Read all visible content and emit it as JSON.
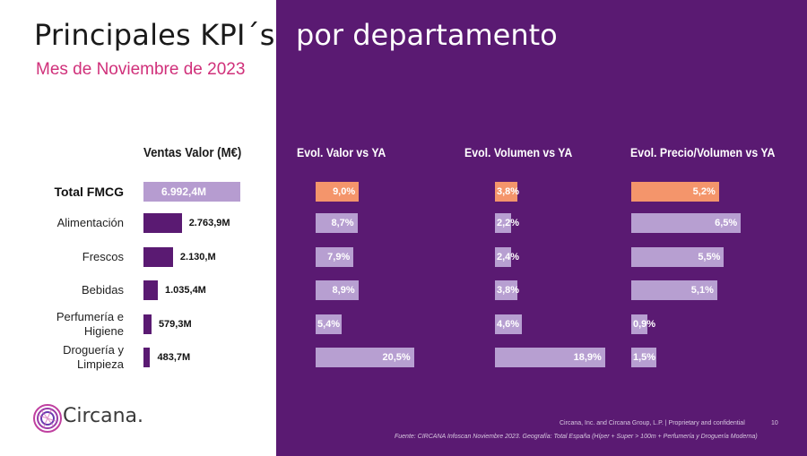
{
  "title": {
    "part1": "Principales KPI´s",
    "part2": "por departamento"
  },
  "subtitle": "Mes de Noviembre de 2023",
  "colors": {
    "purple_bg": "#5a1a72",
    "bar_total_light": "#b69cd0",
    "bar_dark": "#5a1a72",
    "bar_light": "#b79fd1",
    "bar_highlight": "#f4956b",
    "subtitle_pink": "#d0307a"
  },
  "chart_data": [
    {
      "type": "bar",
      "title": "Ventas Valor (M€)",
      "categories": [
        "Total FMCG",
        "Alimentación",
        "Frescos",
        "Bebidas",
        "Perfumería e Higiene",
        "Droguería y Limpieza"
      ],
      "category_labels": [
        [
          "Total FMCG"
        ],
        [
          "Alimentación"
        ],
        [
          "Frescos"
        ],
        [
          "Bebidas"
        ],
        [
          "Perfumería e",
          "Higiene"
        ],
        [
          "Droguería y",
          "Limpieza"
        ]
      ],
      "values": [
        6992.4,
        2763.9,
        2130.0,
        1035.4,
        579.3,
        483.7
      ],
      "data_labels": [
        "6.992,4M",
        "2.763,9M",
        "2.130,M",
        "1.035,4M",
        "579,3M",
        "483,7M"
      ],
      "orientation": "horizontal"
    },
    {
      "type": "bar",
      "title": "Evol. Valor vs YA",
      "categories": [
        "Total FMCG",
        "Alimentación",
        "Frescos",
        "Bebidas",
        "Perfumería e Higiene",
        "Droguería y Limpieza"
      ],
      "values": [
        9.0,
        8.7,
        7.9,
        8.9,
        5.4,
        20.5
      ],
      "data_labels": [
        "9,0%",
        "8,7%",
        "7,9%",
        "8,9%",
        "5,4%",
        "20,5%"
      ],
      "unit": "%",
      "orientation": "horizontal"
    },
    {
      "type": "bar",
      "title": "Evol. Volumen vs YA",
      "categories": [
        "Total FMCG",
        "Alimentación",
        "Frescos",
        "Bebidas",
        "Perfumería e Higiene",
        "Droguería y Limpieza"
      ],
      "values": [
        3.8,
        2.2,
        2.4,
        3.8,
        4.6,
        18.9
      ],
      "data_labels": [
        "3,8%",
        "2,2%",
        "2,4%",
        "3,8%",
        "4,6%",
        "18,9%"
      ],
      "unit": "%",
      "orientation": "horizontal"
    },
    {
      "type": "bar",
      "title": "Evol. Precio/Volumen vs YA",
      "categories": [
        "Total FMCG",
        "Alimentación",
        "Frescos",
        "Bebidas",
        "Perfumería e Higiene",
        "Droguería y Limpieza"
      ],
      "values": [
        5.2,
        6.5,
        5.5,
        5.1,
        0.9,
        1.5
      ],
      "data_labels": [
        "5,2%",
        "6,5%",
        "5,5%",
        "5,1%",
        "0,9%",
        "1,5%"
      ],
      "unit": "%",
      "orientation": "horizontal"
    }
  ],
  "logo": {
    "text": "Circana."
  },
  "footer": {
    "copyright": "Circana, Inc. and Circana Group, L.P. | Proprietary and confidential",
    "page": "10",
    "source": "Fuente: CIRCANA Infoscan Noviembre 2023. Geografía: Total España (Híper + Super > 100m + Perfumería y Droguería Moderna)"
  }
}
